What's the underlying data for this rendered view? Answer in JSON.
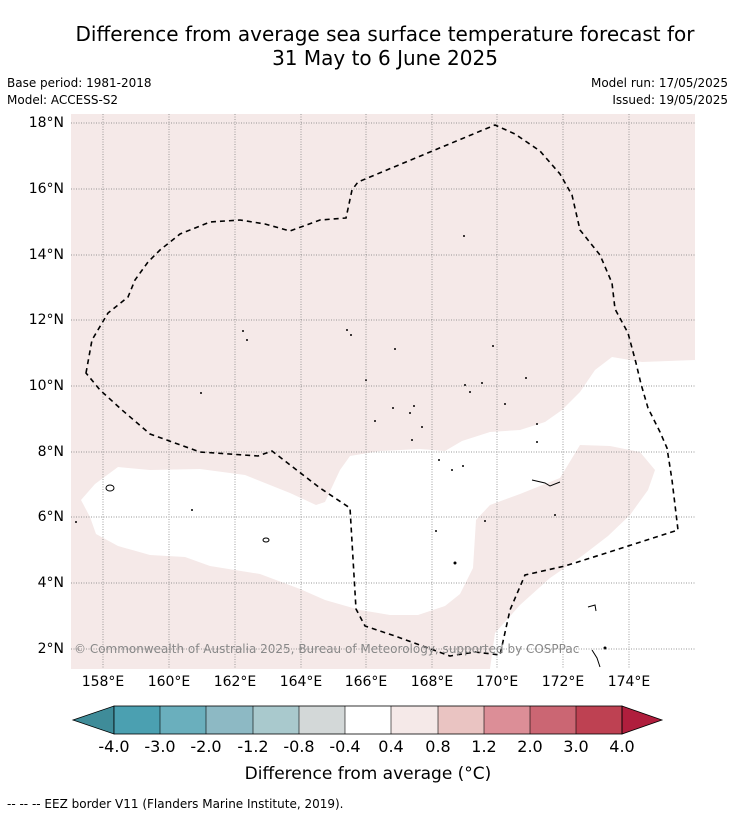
{
  "title": {
    "line1": "Difference from average sea surface temperature forecast for",
    "line2": "31 May to 6 June 2025"
  },
  "info": {
    "base_period": "Base period: 1981-2018",
    "model": "Model: ACCESS-S2",
    "model_run": "Model run: 17/05/2025",
    "issued": "Issued: 19/05/2025"
  },
  "map": {
    "lat_labels": [
      "18°N",
      "16°N",
      "14°N",
      "12°N",
      "10°N",
      "8°N",
      "6°N",
      "4°N",
      "2°N"
    ],
    "lon_labels": [
      "158°E",
      "160°E",
      "162°E",
      "164°E",
      "166°E",
      "168°E",
      "170°E",
      "172°E",
      "174°E"
    ],
    "copyright": "© Commonwealth of Australia 2025, Bureau of Meteorology, supported by COSPPac",
    "lon_range": [
      157.0,
      176.0
    ],
    "lat_range": [
      1.4,
      18.3
    ],
    "gridlines": true,
    "fill_colors": {
      "0.4_to_0.8": "#f5e9e8",
      "-0.4_to_0.4": "#ffffff"
    }
  },
  "colorbar": {
    "labels": [
      "-4.0",
      "-3.0",
      "-2.0",
      "-1.2",
      "-0.8",
      "-0.4",
      "0.4",
      "0.8",
      "1.2",
      "2.0",
      "3.0",
      "4.0"
    ],
    "colors": [
      "#3f8c99",
      "#4ba0b1",
      "#6aafbd",
      "#8db9c4",
      "#a9c9cd",
      "#d3d8d8",
      "#ffffff",
      "#f5e9e8",
      "#eac4c2",
      "#dc8e97",
      "#cb6673",
      "#be4152",
      "#b01e3d"
    ],
    "title": "Difference from average (°C)"
  },
  "footer": {
    "legend_text": "--  --  -- EEZ border V11 (Flanders Marine Institute, 2019)."
  }
}
